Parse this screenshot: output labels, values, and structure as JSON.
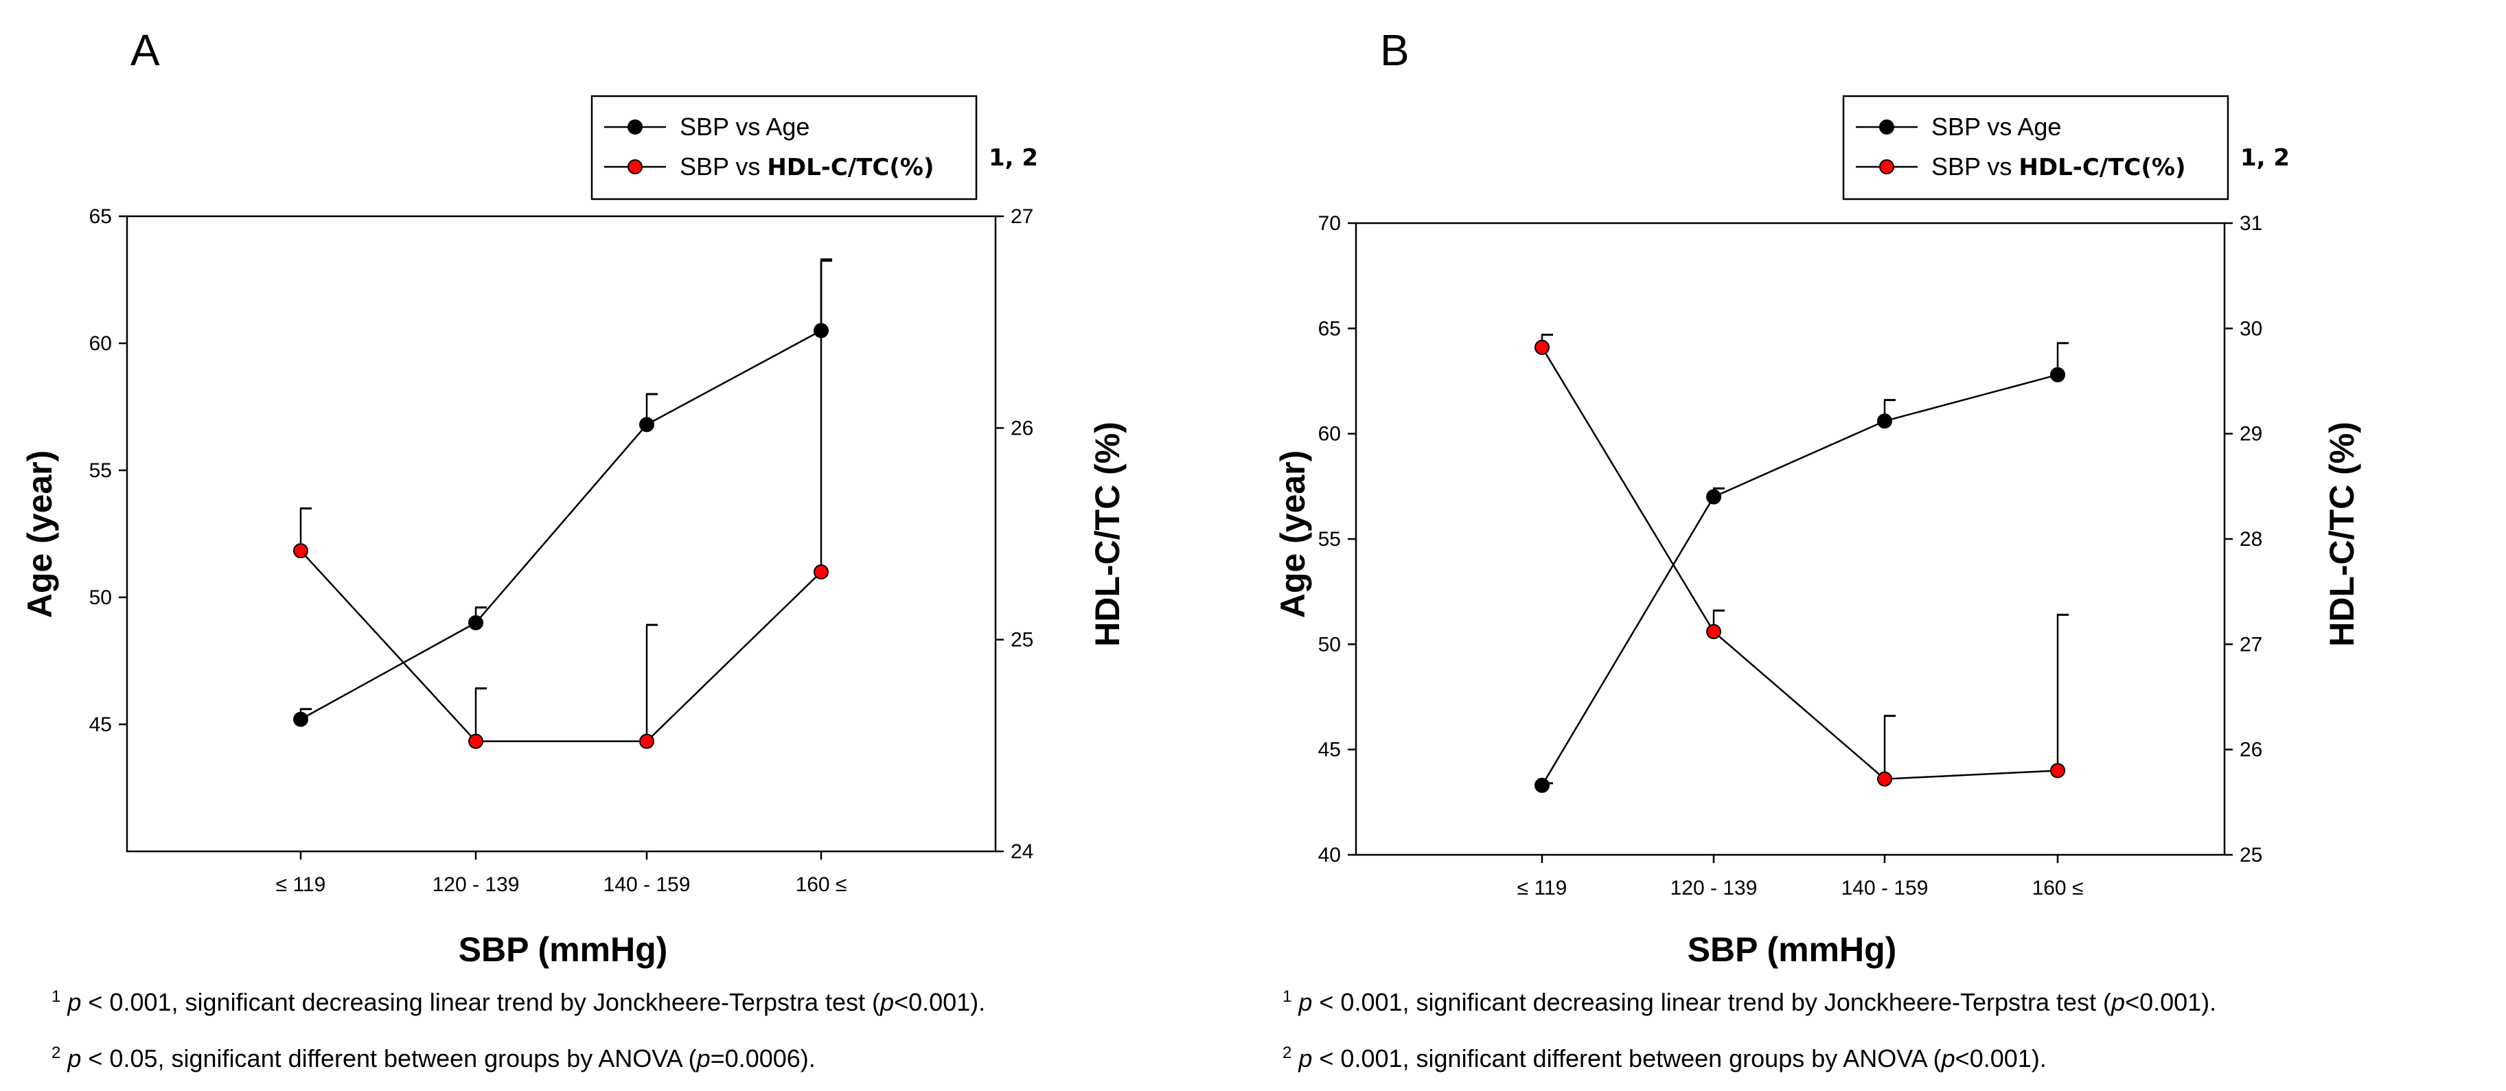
{
  "chart_data": [
    {
      "type": "line",
      "panel": "A",
      "legend": {
        "age_label": "SBP vs Age",
        "hdl_prefix": "SBP vs ",
        "hdl_bold": "HDL-C/TC(%)",
        "superscript": "1, 2"
      },
      "categories": [
        "≤ 119",
        "120 - 139",
        "140 - 159",
        "160 ≤"
      ],
      "xlabel": "SBP (mmHg)",
      "ylabel_left": "Age (year)",
      "ylabel_right": "HDL-C/TC (%)",
      "ylim_left": [
        40,
        65
      ],
      "yticks_left": [
        "45",
        "50",
        "55",
        "60",
        "65"
      ],
      "ylim_right": [
        24,
        27
      ],
      "yticks_right": [
        "24",
        "25",
        "26",
        "27"
      ],
      "series": [
        {
          "name": "SBP vs Age",
          "axis": "left",
          "color": "#000000",
          "values": [
            45.2,
            49.0,
            56.8,
            60.5
          ],
          "errors": [
            0.4,
            0.6,
            1.2,
            2.8
          ]
        },
        {
          "name": "SBP vs HDL-C/TC(%)",
          "axis": "right",
          "color": "#ff0000",
          "values": [
            25.42,
            24.52,
            24.52,
            25.32
          ],
          "errors": [
            0.2,
            0.25,
            0.55,
            1.47
          ]
        }
      ],
      "footnotes": [
        {
          "num": "1",
          "p": "p",
          "text1": " < 0.001, significant decreasing linear trend by Jonckheere-Terpstra test (",
          "p2": "p",
          "text2": "<0.001)."
        },
        {
          "num": "2",
          "p": "p",
          "text1": " < 0.05, significant different between groups by ANOVA (",
          "p2": "p",
          "text2": "=0.0006)."
        }
      ]
    },
    {
      "type": "line",
      "panel": "B",
      "legend": {
        "age_label": "SBP vs Age",
        "hdl_prefix": "SBP vs ",
        "hdl_bold": "HDL-C/TC(%)",
        "superscript": "1, 2"
      },
      "categories": [
        "≤ 119",
        "120 - 139",
        "140 - 159",
        "160 ≤"
      ],
      "xlabel": "SBP (mmHg)",
      "ylabel_left": "Age (year)",
      "ylabel_right": "HDL-C/TC (%)",
      "ylim_left": [
        40,
        70
      ],
      "yticks_left": [
        "40",
        "45",
        "50",
        "55",
        "60",
        "65",
        "70"
      ],
      "ylim_right": [
        25,
        31
      ],
      "yticks_right": [
        "25",
        "26",
        "27",
        "28",
        "29",
        "30",
        "31"
      ],
      "series": [
        {
          "name": "SBP vs Age",
          "axis": "left",
          "color": "#000000",
          "values": [
            43.3,
            57.0,
            60.6,
            62.8
          ],
          "errors": [
            0.1,
            0.4,
            1.0,
            1.5
          ]
        },
        {
          "name": "SBP vs HDL-C/TC(%)",
          "axis": "right",
          "color": "#ff0000",
          "values": [
            29.82,
            27.12,
            25.72,
            25.8
          ],
          "errors": [
            0.12,
            0.2,
            0.6,
            1.48
          ]
        }
      ],
      "footnotes": [
        {
          "num": "1",
          "p": "p",
          "text1": " < 0.001, significant decreasing linear trend by Jonckheere-Terpstra test (",
          "p2": "p",
          "text2": "<0.001)."
        },
        {
          "num": "2",
          "p": "p",
          "text1": " < 0.001, significant different between groups by ANOVA (",
          "p2": "p",
          "text2": "<0.001)."
        }
      ]
    }
  ]
}
